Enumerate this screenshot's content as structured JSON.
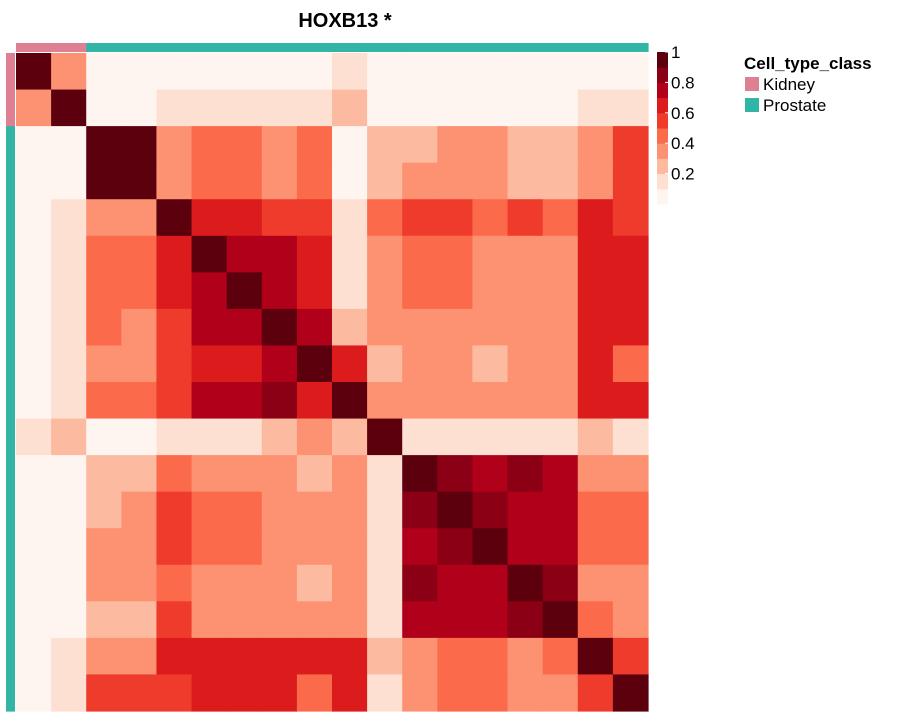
{
  "chart_data": {
    "type": "heatmap",
    "title": "HOXB13 *",
    "n": 18,
    "annotation": {
      "name": "Cell_type_class",
      "classes": [
        {
          "label": "Kidney",
          "color": "#DE7F93"
        },
        {
          "label": "Prostate",
          "color": "#33B5A5"
        }
      ],
      "assignments": [
        "Kidney",
        "Kidney",
        "Prostate",
        "Prostate",
        "Prostate",
        "Prostate",
        "Prostate",
        "Prostate",
        "Prostate",
        "Prostate",
        "Prostate",
        "Prostate",
        "Prostate",
        "Prostate",
        "Prostate",
        "Prostate",
        "Prostate",
        "Prostate"
      ]
    },
    "color_scale": {
      "range": [
        0,
        1
      ],
      "ticks": [
        "1",
        "0.8",
        "0.6",
        "0.4",
        "0.2"
      ],
      "tick_values": [
        1,
        0.8,
        0.6,
        0.4,
        0.2
      ],
      "bins": [
        {
          "min": 0.0,
          "max": 0.1,
          "color": "#FFF5F0"
        },
        {
          "min": 0.1,
          "max": 0.2,
          "color": "#FEE0D2"
        },
        {
          "min": 0.2,
          "max": 0.3,
          "color": "#FCBBA1"
        },
        {
          "min": 0.3,
          "max": 0.4,
          "color": "#FC9272"
        },
        {
          "min": 0.4,
          "max": 0.5,
          "color": "#FB6A4A"
        },
        {
          "min": 0.5,
          "max": 0.6,
          "color": "#EF3B2C"
        },
        {
          "min": 0.6,
          "max": 0.7,
          "color": "#DC1C1C"
        },
        {
          "min": 0.7,
          "max": 0.8,
          "color": "#B1001A"
        },
        {
          "min": 0.8,
          "max": 0.9,
          "color": "#8B0014"
        },
        {
          "min": 0.9,
          "max": 1.0,
          "color": "#5C000E"
        }
      ]
    },
    "matrix": [
      [
        1.0,
        0.35,
        0.05,
        0.05,
        0.05,
        0.05,
        0.05,
        0.05,
        0.05,
        0.15,
        0.05,
        0.05,
        0.05,
        0.05,
        0.05,
        0.05,
        0.05,
        0.05
      ],
      [
        0.35,
        1.0,
        0.05,
        0.05,
        0.15,
        0.15,
        0.15,
        0.15,
        0.15,
        0.25,
        0.05,
        0.05,
        0.05,
        0.05,
        0.05,
        0.05,
        0.15,
        0.15
      ],
      [
        0.05,
        0.05,
        1.0,
        1.0,
        0.35,
        0.45,
        0.45,
        0.35,
        0.45,
        0.05,
        0.25,
        0.25,
        0.35,
        0.35,
        0.25,
        0.25,
        0.35,
        0.55
      ],
      [
        0.05,
        0.05,
        1.0,
        1.0,
        0.35,
        0.45,
        0.45,
        0.35,
        0.45,
        0.05,
        0.25,
        0.35,
        0.35,
        0.35,
        0.25,
        0.25,
        0.35,
        0.55
      ],
      [
        0.05,
        0.15,
        0.35,
        0.35,
        1.0,
        0.65,
        0.65,
        0.55,
        0.55,
        0.15,
        0.45,
        0.55,
        0.55,
        0.45,
        0.55,
        0.45,
        0.65,
        0.55
      ],
      [
        0.05,
        0.15,
        0.45,
        0.45,
        0.65,
        1.0,
        0.75,
        0.75,
        0.65,
        0.15,
        0.35,
        0.45,
        0.45,
        0.35,
        0.35,
        0.35,
        0.65,
        0.65
      ],
      [
        0.05,
        0.15,
        0.45,
        0.45,
        0.65,
        0.75,
        1.0,
        0.75,
        0.65,
        0.15,
        0.35,
        0.45,
        0.45,
        0.35,
        0.35,
        0.35,
        0.65,
        0.65
      ],
      [
        0.05,
        0.15,
        0.45,
        0.35,
        0.55,
        0.75,
        0.75,
        1.0,
        0.75,
        0.25,
        0.35,
        0.35,
        0.35,
        0.35,
        0.35,
        0.35,
        0.65,
        0.65
      ],
      [
        0.05,
        0.15,
        0.35,
        0.35,
        0.55,
        0.65,
        0.65,
        0.75,
        1.0,
        0.65,
        0.25,
        0.35,
        0.35,
        0.25,
        0.35,
        0.35,
        0.65,
        0.45
      ],
      [
        0.05,
        0.15,
        0.45,
        0.45,
        0.55,
        0.75,
        0.75,
        0.85,
        0.65,
        1.0,
        0.35,
        0.35,
        0.35,
        0.35,
        0.35,
        0.35,
        0.65,
        0.65
      ],
      [
        0.15,
        0.25,
        0.05,
        0.05,
        0.15,
        0.15,
        0.15,
        0.25,
        0.35,
        0.25,
        1.0,
        0.15,
        0.15,
        0.15,
        0.15,
        0.15,
        0.25,
        0.15
      ],
      [
        0.05,
        0.05,
        0.25,
        0.25,
        0.45,
        0.35,
        0.35,
        0.35,
        0.25,
        0.35,
        0.15,
        1.0,
        0.85,
        0.75,
        0.85,
        0.75,
        0.35,
        0.35
      ],
      [
        0.05,
        0.05,
        0.25,
        0.35,
        0.55,
        0.45,
        0.45,
        0.35,
        0.35,
        0.35,
        0.15,
        0.85,
        1.0,
        0.85,
        0.75,
        0.75,
        0.45,
        0.45
      ],
      [
        0.05,
        0.05,
        0.35,
        0.35,
        0.55,
        0.45,
        0.45,
        0.35,
        0.35,
        0.35,
        0.15,
        0.75,
        0.85,
        1.0,
        0.75,
        0.75,
        0.45,
        0.45
      ],
      [
        0.05,
        0.05,
        0.35,
        0.35,
        0.45,
        0.35,
        0.35,
        0.35,
        0.25,
        0.35,
        0.15,
        0.85,
        0.75,
        0.75,
        1.0,
        0.85,
        0.35,
        0.35
      ],
      [
        0.05,
        0.05,
        0.25,
        0.25,
        0.55,
        0.35,
        0.35,
        0.35,
        0.35,
        0.35,
        0.15,
        0.75,
        0.75,
        0.75,
        0.85,
        1.0,
        0.45,
        0.35
      ],
      [
        0.05,
        0.15,
        0.35,
        0.35,
        0.65,
        0.65,
        0.65,
        0.65,
        0.65,
        0.65,
        0.25,
        0.35,
        0.45,
        0.45,
        0.35,
        0.45,
        1.0,
        0.55
      ],
      [
        0.05,
        0.15,
        0.55,
        0.55,
        0.55,
        0.65,
        0.65,
        0.65,
        0.45,
        0.65,
        0.15,
        0.35,
        0.45,
        0.45,
        0.35,
        0.35,
        0.55,
        1.0
      ]
    ]
  }
}
